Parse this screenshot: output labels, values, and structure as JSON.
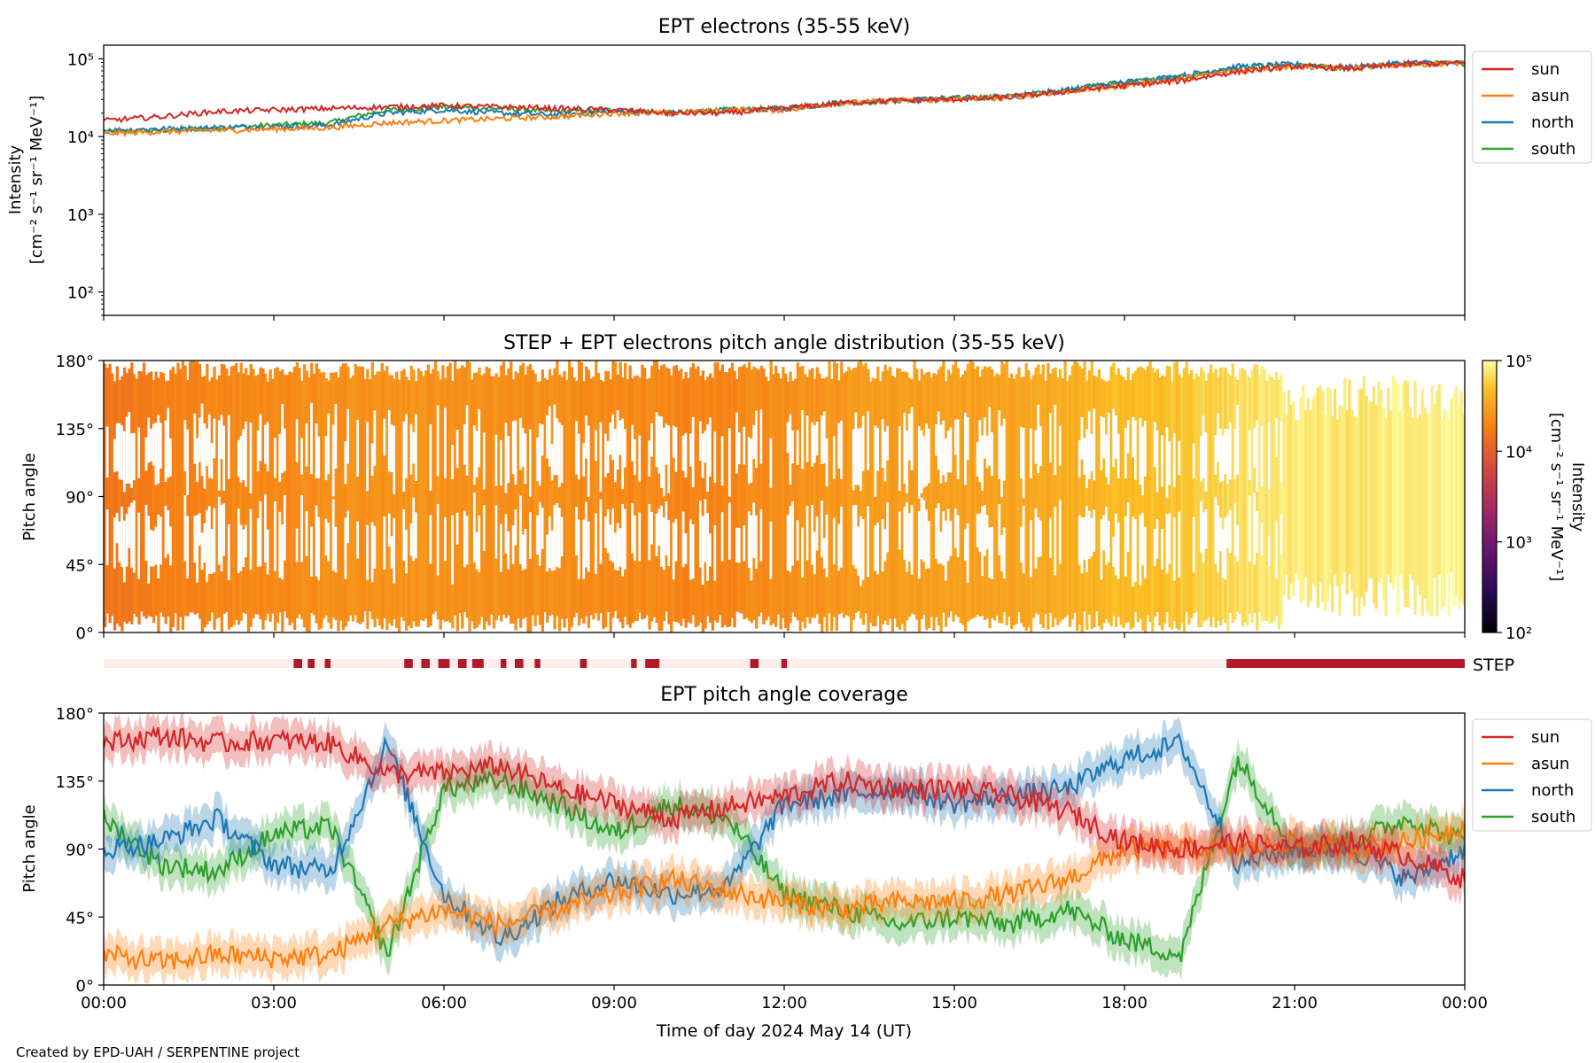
{
  "figure": {
    "footer": "Created by EPD-UAH / SERPENTINE project",
    "xlabel": "Time of day 2024 May 14 (UT)",
    "xticks": [
      "00:00",
      "03:00",
      "06:00",
      "09:00",
      "12:00",
      "15:00",
      "18:00",
      "21:00",
      "00:00"
    ]
  },
  "panel1": {
    "title": "EPT electrons (35-55 keV)",
    "ylabel_1": "Intensity",
    "ylabel_2": "[cm⁻² s⁻¹ sr⁻¹ MeV⁻¹]",
    "yticks": [
      "10²",
      "10³",
      "10⁴",
      "10⁵"
    ],
    "legend": [
      "sun",
      "asun",
      "north",
      "south"
    ]
  },
  "panel2": {
    "title": "STEP + EPT electrons pitch angle distribution (35-55 keV)",
    "ylabel": "Pitch angle",
    "yticks": [
      "0°",
      "45°",
      "90°",
      "135°",
      "180°"
    ],
    "colorbar_label_1": "Intensity",
    "colorbar_label_2": "[cm⁻² s⁻¹ sr⁻¹ MeV⁻¹]",
    "colorbar_ticks": [
      "10²",
      "10³",
      "10⁴",
      "10⁵"
    ]
  },
  "step_strip": {
    "label": "STEP"
  },
  "panel3": {
    "title": "EPT pitch angle coverage",
    "ylabel": "Pitch angle",
    "yticks": [
      "0°",
      "45°",
      "90°",
      "135°",
      "180°"
    ],
    "legend": [
      "sun",
      "asun",
      "north",
      "south"
    ]
  },
  "colors": {
    "sun": "#d62728",
    "asun": "#ff7f0e",
    "north": "#1f77b4",
    "south": "#2ca02c",
    "step_on": "#b2182b",
    "step_off": "#fdeee9"
  },
  "chart_data": [
    {
      "type": "line",
      "title": "EPT electrons (35-55 keV)",
      "xlabel": "",
      "ylabel": "Intensity [cm⁻² s⁻¹ sr⁻¹ MeV⁻¹]",
      "yscale": "log",
      "ylim": [
        50,
        150000
      ],
      "xlim_hours": [
        0,
        24
      ],
      "legend_position": "outside right, top",
      "x": [
        0,
        1,
        2,
        3,
        4,
        5,
        6,
        7,
        8,
        9,
        10,
        11,
        12,
        13,
        14,
        15,
        16,
        17,
        18,
        19,
        20,
        21,
        22,
        23,
        24
      ],
      "series": [
        {
          "name": "sun",
          "values": [
            16000,
            18000,
            21000,
            22000,
            23000,
            24000,
            25000,
            24000,
            23000,
            22000,
            20000,
            20000,
            23000,
            27000,
            29000,
            30000,
            32000,
            38000,
            45000,
            52000,
            68000,
            80000,
            75000,
            85000,
            88000
          ]
        },
        {
          "name": "asun",
          "values": [
            11000,
            11500,
            12000,
            12500,
            13000,
            15000,
            16000,
            17000,
            18000,
            20000,
            20000,
            22000,
            22000,
            27000,
            29000,
            30000,
            32000,
            38000,
            45000,
            55000,
            70000,
            80000,
            75000,
            85000,
            88000
          ]
        },
        {
          "name": "north",
          "values": [
            12000,
            12500,
            13000,
            13500,
            14000,
            20000,
            22000,
            20000,
            19000,
            21000,
            20000,
            22000,
            23000,
            27000,
            29000,
            31000,
            33000,
            40000,
            50000,
            60000,
            80000,
            85000,
            78000,
            90000,
            88000
          ]
        },
        {
          "name": "south",
          "values": [
            11500,
            12000,
            13000,
            14000,
            15000,
            22000,
            24000,
            23000,
            21000,
            22000,
            20000,
            22000,
            23000,
            27000,
            29000,
            31000,
            33000,
            40000,
            50000,
            58000,
            75000,
            82000,
            76000,
            86000,
            88000
          ]
        }
      ]
    },
    {
      "type": "heatmap",
      "title": "STEP + EPT electrons pitch angle distribution (35-55 keV)",
      "ylabel": "Pitch angle",
      "ylim_deg": [
        0,
        180
      ],
      "xlim_hours": [
        0,
        24
      ],
      "colorscale": "inferno",
      "colorbar_range": [
        100,
        100000
      ],
      "colorbar_scale": "log",
      "x_hours": [
        0,
        1,
        2,
        3,
        4,
        5,
        6,
        7,
        8,
        9,
        10,
        11,
        12,
        13,
        14,
        15,
        16,
        17,
        18,
        19,
        20,
        21,
        22,
        23,
        24
      ],
      "intensity": [
        16000,
        18000,
        21000,
        22000,
        23000,
        24000,
        25000,
        24000,
        23000,
        22000,
        20000,
        20000,
        23000,
        27000,
        29000,
        30000,
        32000,
        38000,
        45000,
        52000,
        68000,
        80000,
        75000,
        85000,
        88000
      ]
    },
    {
      "type": "bar",
      "title": "STEP",
      "xlim_hours": [
        0,
        24
      ],
      "step_on_intervals_hours": [
        [
          3.35,
          3.5
        ],
        [
          3.6,
          3.72
        ],
        [
          3.9,
          4.0
        ],
        [
          5.3,
          5.45
        ],
        [
          5.6,
          5.75
        ],
        [
          5.9,
          6.1
        ],
        [
          6.25,
          6.4
        ],
        [
          6.5,
          6.7
        ],
        [
          7.0,
          7.1
        ],
        [
          7.25,
          7.4
        ],
        [
          7.6,
          7.7
        ],
        [
          8.4,
          8.52
        ],
        [
          9.3,
          9.4
        ],
        [
          9.55,
          9.8
        ],
        [
          11.4,
          11.55
        ],
        [
          11.95,
          12.05
        ],
        [
          19.8,
          24.0
        ]
      ]
    },
    {
      "type": "line",
      "title": "EPT pitch angle coverage",
      "xlabel": "Time of day 2024 May 14 (UT)",
      "ylabel": "Pitch angle",
      "ylim_deg": [
        0,
        180
      ],
      "xlim_hours": [
        0,
        24
      ],
      "legend_position": "outside right, top",
      "x": [
        0,
        1,
        2,
        3,
        4,
        5,
        6,
        7,
        8,
        9,
        10,
        11,
        12,
        13,
        14,
        15,
        16,
        17,
        18,
        19,
        20,
        21,
        22,
        23,
        24
      ],
      "series": [
        {
          "name": "sun",
          "values": [
            160,
            165,
            160,
            162,
            160,
            140,
            140,
            145,
            130,
            120,
            110,
            118,
            125,
            135,
            130,
            130,
            125,
            115,
            95,
            90,
            95,
            90,
            95,
            85,
            70
          ]
        },
        {
          "name": "asun",
          "values": [
            20,
            15,
            20,
            18,
            20,
            40,
            50,
            40,
            50,
            60,
            70,
            62,
            55,
            50,
            55,
            55,
            60,
            70,
            90,
            90,
            90,
            95,
            90,
            95,
            105
          ]
        },
        {
          "name": "north",
          "values": [
            90,
            95,
            110,
            80,
            75,
            160,
            60,
            30,
            55,
            70,
            60,
            65,
            120,
            125,
            130,
            120,
            125,
            130,
            150,
            160,
            80,
            90,
            90,
            70,
            90
          ]
        },
        {
          "name": "south",
          "values": [
            110,
            80,
            75,
            100,
            105,
            20,
            130,
            135,
            120,
            100,
            120,
            110,
            60,
            50,
            40,
            45,
            40,
            50,
            30,
            20,
            150,
            90,
            95,
            110,
            95
          ]
        }
      ]
    }
  ]
}
